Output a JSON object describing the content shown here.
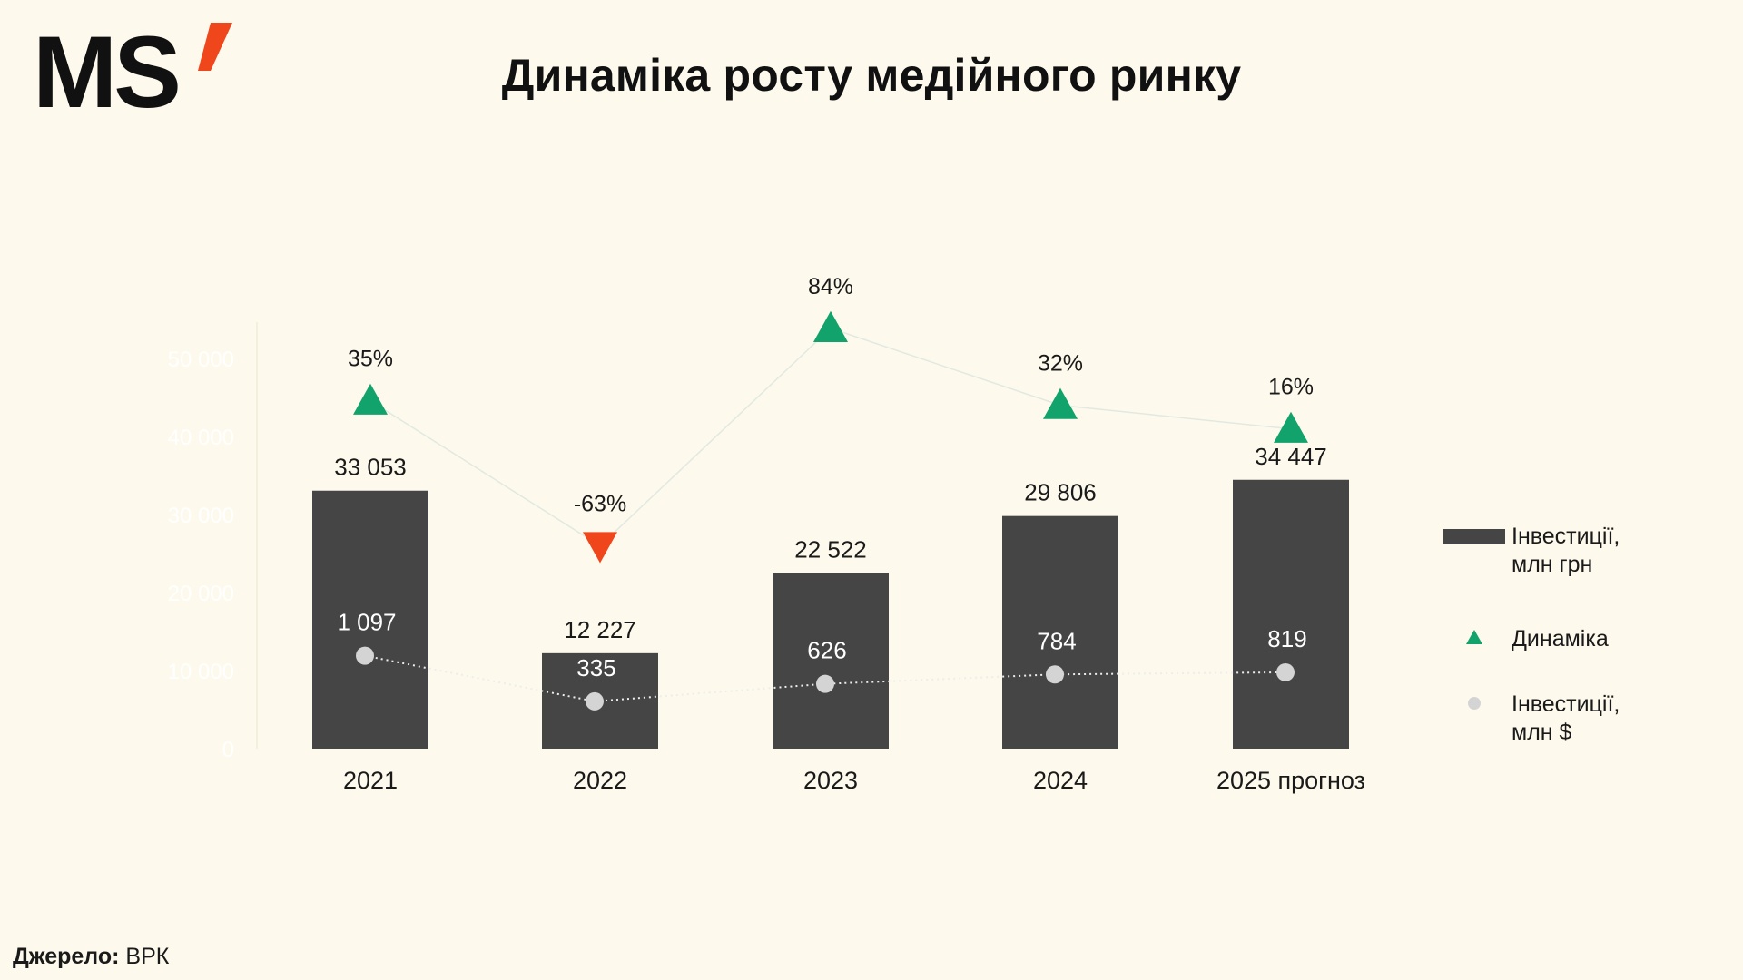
{
  "logo": {
    "text": "MS"
  },
  "title": "Динаміка росту медійного ринку",
  "source": {
    "label": "Джерело:",
    "value": "ВРК"
  },
  "colors": {
    "background": "#FDF9EC",
    "bar": "#454545",
    "growth": "#12A26B",
    "decline": "#F0461C",
    "usd_point": "#D4D4D4",
    "logo_accent": "#F0461C"
  },
  "chart_data": {
    "type": "bar",
    "categories": [
      "2021",
      "2022",
      "2023",
      "2024",
      "2025 прогноз"
    ],
    "series": [
      {
        "name": "Інвестиції, млн грн",
        "type": "bar",
        "axis": "left",
        "values": [
          33053,
          12227,
          22522,
          29806,
          34447
        ],
        "labels": [
          "33 053",
          "12 227",
          "22 522",
          "29 806",
          "34 447"
        ]
      },
      {
        "name": "Динаміка",
        "type": "line",
        "axis": "right",
        "values": [
          35,
          -63,
          84,
          32,
          16
        ],
        "labels": [
          "35%",
          "-63%",
          "84%",
          "32%",
          "16%"
        ]
      },
      {
        "name": "Інвестиції, млн $",
        "type": "line",
        "axis": "left2",
        "values": [
          1097,
          335,
          626,
          784,
          819
        ],
        "labels": [
          "1 097",
          "335",
          "626",
          "784",
          "819"
        ]
      }
    ],
    "y_left_ticks": [
      "50 000",
      "40 000",
      "30 000",
      "20 000",
      "10 000",
      "0"
    ],
    "ylim_left": [
      0,
      55000
    ],
    "ylim_right": [
      -200,
      90
    ],
    "ylim_usd": [
      0,
      5000
    ],
    "legend": {
      "position": "right",
      "items": [
        "Інвестиції,",
        "млн грн",
        "Динаміка",
        "Інвестиції,",
        "млн $"
      ]
    }
  }
}
